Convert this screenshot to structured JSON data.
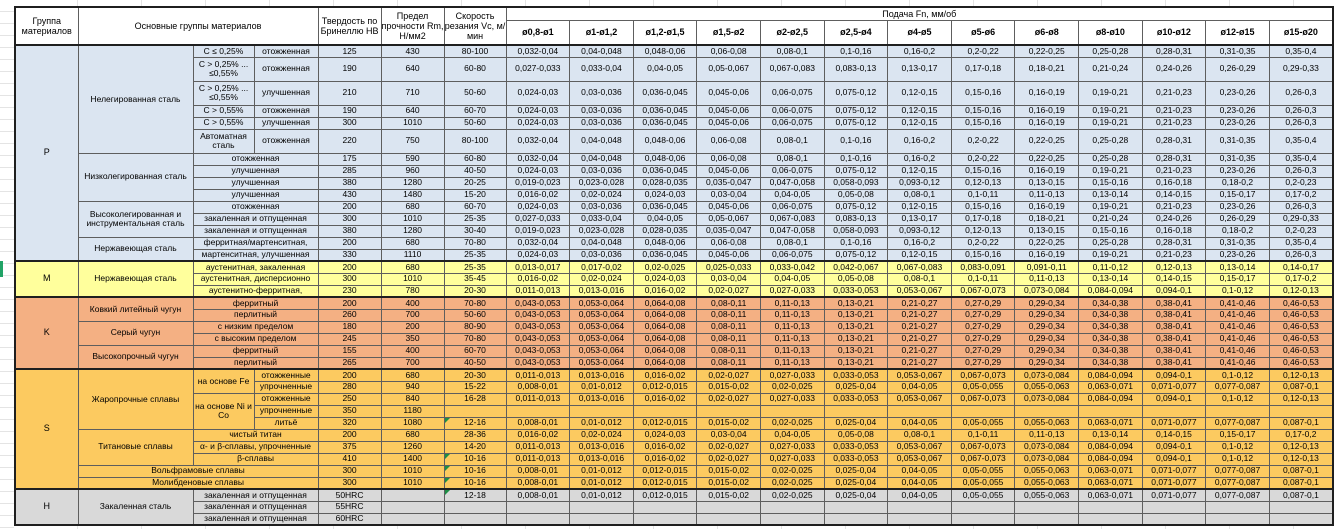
{
  "header": {
    "group": "Группа материалов",
    "main_groups": "Основные группы материалов",
    "hardness": "Твердость по Бринеллю HB",
    "strength": "Предел прочности Rm, Н/мм2",
    "speed": "Скорость резания Vc, м/мин",
    "feed": "Подача Fn, мм/об",
    "diameters": [
      "ø0,8-ø1",
      "ø1-ø1,2",
      "ø1,2-ø1,5",
      "ø1,5-ø2",
      "ø2-ø2,5",
      "ø2,5-ø4",
      "ø4-ø5",
      "ø5-ø6",
      "ø6-ø8",
      "ø8-ø10",
      "ø10-ø12",
      "ø12-ø15",
      "ø15-ø20"
    ]
  },
  "colors": {
    "group_P": "#dbe5f1",
    "group_M": "#ffff9c",
    "group_K": "#f4b083",
    "group_S": "#fcca60",
    "group_H": "#d9d9d9",
    "selection_green": "#21a366",
    "error_triangle_green": "#1e8e46"
  },
  "feed_sets": {
    "A": [
      "0,032-0,04",
      "0,04-0,048",
      "0,048-0,06",
      "0,06-0,08",
      "0,08-0,1",
      "0,1-0,16",
      "0,16-0,2",
      "0,2-0,22",
      "0,22-0,25",
      "0,25-0,28",
      "0,28-0,31",
      "0,31-0,35",
      "0,35-0,4"
    ],
    "B": [
      "0,027-0,033",
      "0,033-0,04",
      "0,04-0,05",
      "0,05-0,067",
      "0,067-0,083",
      "0,083-0,13",
      "0,13-0,17",
      "0,17-0,18",
      "0,18-0,21",
      "0,21-0,24",
      "0,24-0,26",
      "0,26-0,29",
      "0,29-0,33"
    ],
    "C": [
      "0,024-0,03",
      "0,03-0,036",
      "0,036-0,045",
      "0,045-0,06",
      "0,06-0,075",
      "0,075-0,12",
      "0,12-0,15",
      "0,15-0,16",
      "0,16-0,19",
      "0,19-0,21",
      "0,21-0,23",
      "0,23-0,26",
      "0,26-0,3"
    ],
    "D": [
      "0,019-0,023",
      "0,023-0,028",
      "0,028-0,035",
      "0,035-0,047",
      "0,047-0,058",
      "0,058-0,093",
      "0,093-0,12",
      "0,12-0,13",
      "0,13-0,15",
      "0,15-0,16",
      "0,16-0,18",
      "0,18-0,2",
      "0,2-0,23"
    ],
    "E": [
      "0,016-0,02",
      "0,02-0,024",
      "0,024-0,03",
      "0,03-0,04",
      "0,04-0,05",
      "0,05-0,08",
      "0,08-0,1",
      "0,1-0,11",
      "0,11-0,13",
      "0,13-0,14",
      "0,14-0,15",
      "0,15-0,17",
      "0,17-0,2"
    ],
    "F": [
      "0,013-0,017",
      "0,017-0,02",
      "0,02-0,025",
      "0,025-0,033",
      "0,033-0,042",
      "0,042-0,067",
      "0,067-0,083",
      "0,083-0,091",
      "0,091-0,11",
      "0,11-0,12",
      "0,12-0,13",
      "0,13-0,14",
      "0,14-0,17"
    ],
    "G": [
      "0,011-0,013",
      "0,013-0,016",
      "0,016-0,02",
      "0,02-0,027",
      "0,027-0,033",
      "0,033-0,053",
      "0,053-0,067",
      "0,067-0,073",
      "0,073-0,084",
      "0,084-0,094",
      "0,094-0,1",
      "0,1-0,12",
      "0,12-0,13"
    ],
    "H": [
      "0,043-0,053",
      "0,053-0,064",
      "0,064-0,08",
      "0,08-0,11",
      "0,11-0,13",
      "0,13-0,21",
      "0,21-0,27",
      "0,27-0,29",
      "0,29-0,34",
      "0,34-0,38",
      "0,38-0,41",
      "0,41-0,46",
      "0,46-0,53"
    ],
    "I": [
      "0,008-0,01",
      "0,01-0,012",
      "0,012-0,015",
      "0,015-0,02",
      "0,02-0,025",
      "0,025-0,04",
      "0,04-0,05",
      "0,05-0,055",
      "0,055-0,063",
      "0,063-0,071",
      "0,071-0,077",
      "0,077-0,087",
      "0,087-0,1"
    ],
    "X": [
      "",
      "",
      "",
      "",
      "",
      "",
      "",
      "",
      "",
      "",
      "",
      "",
      ""
    ]
  },
  "groups": [
    {
      "code": "P",
      "color": "#dbe5f1",
      "rows": [
        {
          "left": [
            [
              "Нелегированная сталь",
              6,
              1,
              "mat"
            ],
            [
              "C ≤ 0,25%",
              1,
              1
            ],
            [
              "отожженная",
              1,
              1
            ]
          ],
          "hb": "125",
          "rm": "430",
          "vc": "80-100",
          "f": "A"
        },
        {
          "left": [
            [
              "C > 0,25% ...\n≤0,55%",
              1,
              1
            ],
            [
              "отожженная",
              1,
              1
            ]
          ],
          "h": 2,
          "hb": "190",
          "rm": "640",
          "vc": "60-80",
          "f": "B"
        },
        {
          "left": [
            [
              "C > 0,25% ...\n≤0,55%",
              1,
              1
            ],
            [
              "улучшенная",
              1,
              1
            ]
          ],
          "h": 2,
          "hb": "210",
          "rm": "710",
          "vc": "50-60",
          "f": "C"
        },
        {
          "left": [
            [
              "C > 0,55%",
              1,
              1
            ],
            [
              "отожженная",
              1,
              1
            ]
          ],
          "hb": "190",
          "rm": "640",
          "vc": "60-70",
          "f": "C"
        },
        {
          "left": [
            [
              "C > 0,55%",
              1,
              1
            ],
            [
              "улучшенная",
              1,
              1
            ]
          ],
          "hb": "300",
          "rm": "1010",
          "vc": "50-60",
          "f": "C"
        },
        {
          "left": [
            [
              "Автоматная сталь",
              1,
              1
            ],
            [
              "отожженная",
              1,
              1
            ]
          ],
          "h": 2,
          "hb": "220",
          "rm": "750",
          "vc": "80-100",
          "f": "A"
        },
        {
          "left": [
            [
              "Низколегированная сталь",
              4,
              1,
              "mat"
            ],
            [
              "отожженная",
              1,
              2
            ]
          ],
          "hb": "175",
          "rm": "590",
          "vc": "60-80",
          "f": "A"
        },
        {
          "left": [
            [
              "улучшенная",
              1,
              2
            ]
          ],
          "hb": "285",
          "rm": "960",
          "vc": "40-50",
          "f": "C"
        },
        {
          "left": [
            [
              "улучшенная",
              1,
              2
            ]
          ],
          "hb": "380",
          "rm": "1280",
          "vc": "20-25",
          "f": "D"
        },
        {
          "left": [
            [
              "улучшенная",
              1,
              2
            ]
          ],
          "hb": "430",
          "rm": "1480",
          "vc": "15-20",
          "f": "E"
        },
        {
          "left": [
            [
              "Высоколегированная и инструментальная сталь",
              3,
              1,
              "mat"
            ],
            [
              "отожженная",
              1,
              2
            ]
          ],
          "hb": "200",
          "rm": "680",
          "vc": "60-70",
          "f": "C"
        },
        {
          "left": [
            [
              "закаленная и отпущенная",
              1,
              2
            ]
          ],
          "hb": "300",
          "rm": "1010",
          "vc": "25-35",
          "f": "B"
        },
        {
          "left": [
            [
              "закаленная и отпущенная",
              1,
              2
            ]
          ],
          "hb": "380",
          "rm": "1280",
          "vc": "30-40",
          "f": "D"
        },
        {
          "left": [
            [
              "Нержавеющая сталь",
              2,
              1,
              "mat"
            ],
            [
              "ферритная/мартенситная,",
              1,
              2
            ]
          ],
          "hb": "200",
          "rm": "680",
          "vc": "70-80",
          "f": "A"
        },
        {
          "left": [
            [
              "мартенситная, улучшенная",
              1,
              2
            ]
          ],
          "hb": "330",
          "rm": "1110",
          "vc": "25-35",
          "f": "C"
        }
      ]
    },
    {
      "code": "M",
      "color": "#ffff9c",
      "rows": [
        {
          "left": [
            [
              "Нержавеющая сталь",
              3,
              1,
              "mat"
            ],
            [
              "аустенитная, закаленная",
              1,
              2
            ]
          ],
          "hb": "200",
          "rm": "680",
          "vc": "25-35",
          "f": "F"
        },
        {
          "left": [
            [
              "аустенитная, дисперсионно",
              1,
              2
            ]
          ],
          "hb": "300",
          "rm": "1010",
          "vc": "35-45",
          "f": "E"
        },
        {
          "left": [
            [
              "аустенитно-ферритная,",
              1,
              2
            ]
          ],
          "hb": "230",
          "rm": "780",
          "vc": "20-30",
          "f": "G"
        }
      ]
    },
    {
      "code": "K",
      "color": "#f4b083",
      "rows": [
        {
          "left": [
            [
              "Ковкий литейный чугун",
              2,
              1,
              "mat"
            ],
            [
              "ферритный",
              1,
              2
            ]
          ],
          "hb": "200",
          "rm": "400",
          "vc": "70-80",
          "f": "H"
        },
        {
          "left": [
            [
              "перлитный",
              1,
              2
            ]
          ],
          "hb": "260",
          "rm": "700",
          "vc": "50-60",
          "f": "H"
        },
        {
          "left": [
            [
              "Серый чугун",
              2,
              1,
              "mat"
            ],
            [
              "с низким пределом",
              1,
              2
            ]
          ],
          "hb": "180",
          "rm": "200",
          "vc": "80-90",
          "f": "H"
        },
        {
          "left": [
            [
              "с высоким пределом",
              1,
              2
            ]
          ],
          "hb": "245",
          "rm": "350",
          "vc": "70-80",
          "f": "H"
        },
        {
          "left": [
            [
              "Высокопрочный чугун",
              2,
              1,
              "mat"
            ],
            [
              "ферритный",
              1,
              2
            ]
          ],
          "hb": "155",
          "rm": "400",
          "vc": "60-70",
          "f": "H"
        },
        {
          "left": [
            [
              "перлитный",
              1,
              2
            ]
          ],
          "hb": "265",
          "rm": "700",
          "vc": "40-50",
          "f": "H"
        }
      ]
    },
    {
      "code": "S",
      "color": "#fcca60",
      "rows": [
        {
          "left": [
            [
              "Жаропрочные сплавы",
              5,
              1,
              "mat"
            ],
            [
              "на основе Fe",
              2,
              1
            ],
            [
              "отожженные",
              1,
              1
            ]
          ],
          "hb": "200",
          "rm": "680",
          "vc": "20-30",
          "f": "G"
        },
        {
          "left": [
            [
              "упрочненные",
              1,
              1
            ]
          ],
          "hb": "280",
          "rm": "940",
          "vc": "15-22",
          "f": "I"
        },
        {
          "left": [
            [
              "на основе Ni и Co",
              3,
              1
            ],
            [
              "отожженные",
              1,
              1
            ]
          ],
          "hb": "250",
          "rm": "840",
          "vc": "16-28",
          "f": "G"
        },
        {
          "left": [
            [
              "упрочненные",
              1,
              1
            ]
          ],
          "hb": "350",
          "rm": "1180",
          "vc": "",
          "f": "X"
        },
        {
          "left": [
            [
              "литьё",
              1,
              1
            ]
          ],
          "hb": "320",
          "rm": "1080",
          "vc": "12-16",
          "vcErr": true,
          "f": "I"
        },
        {
          "left": [
            [
              "Титановые сплавы",
              3,
              1,
              "mat"
            ],
            [
              "чистый титан",
              1,
              2
            ]
          ],
          "hb": "200",
          "rm": "680",
          "vc": "28-36",
          "f": "E"
        },
        {
          "left": [
            [
              "α- и β-сплавы, упрочненные",
              1,
              2
            ]
          ],
          "hb": "375",
          "rm": "1260",
          "vc": "14-20",
          "f": "G"
        },
        {
          "left": [
            [
              "β-сплавы",
              1,
              2
            ]
          ],
          "hb": "410",
          "rm": "1400",
          "vc": "10-16",
          "vcErr": true,
          "f": "G"
        },
        {
          "left": [
            [
              "Вольфрамовые сплавы",
              1,
              3,
              "mat"
            ]
          ],
          "hb": "300",
          "rm": "1010",
          "vc": "10-16",
          "vcErr": true,
          "f": "I"
        },
        {
          "left": [
            [
              "Молибденовые сплавы",
              1,
              3,
              "mat"
            ]
          ],
          "hb": "300",
          "rm": "1010",
          "vc": "10-16",
          "vcErr": true,
          "f": "I"
        }
      ]
    },
    {
      "code": "H",
      "color": "#d9d9d9",
      "rows": [
        {
          "left": [
            [
              "Закаленная сталь",
              3,
              1,
              "mat"
            ],
            [
              "закаленная и отпущенная",
              1,
              2
            ]
          ],
          "hb": "50HRC",
          "rm": "",
          "vc": "12-18",
          "vcErr": true,
          "f": "I"
        },
        {
          "left": [
            [
              "закаленная и отпущенная",
              1,
              2
            ]
          ],
          "hb": "55HRC",
          "rm": "",
          "vc": "",
          "f": "X"
        },
        {
          "left": [
            [
              "закаленная и отпущенная",
              1,
              2
            ]
          ],
          "hb": "60HRC",
          "rm": "",
          "vc": "",
          "f": "X"
        }
      ]
    }
  ]
}
